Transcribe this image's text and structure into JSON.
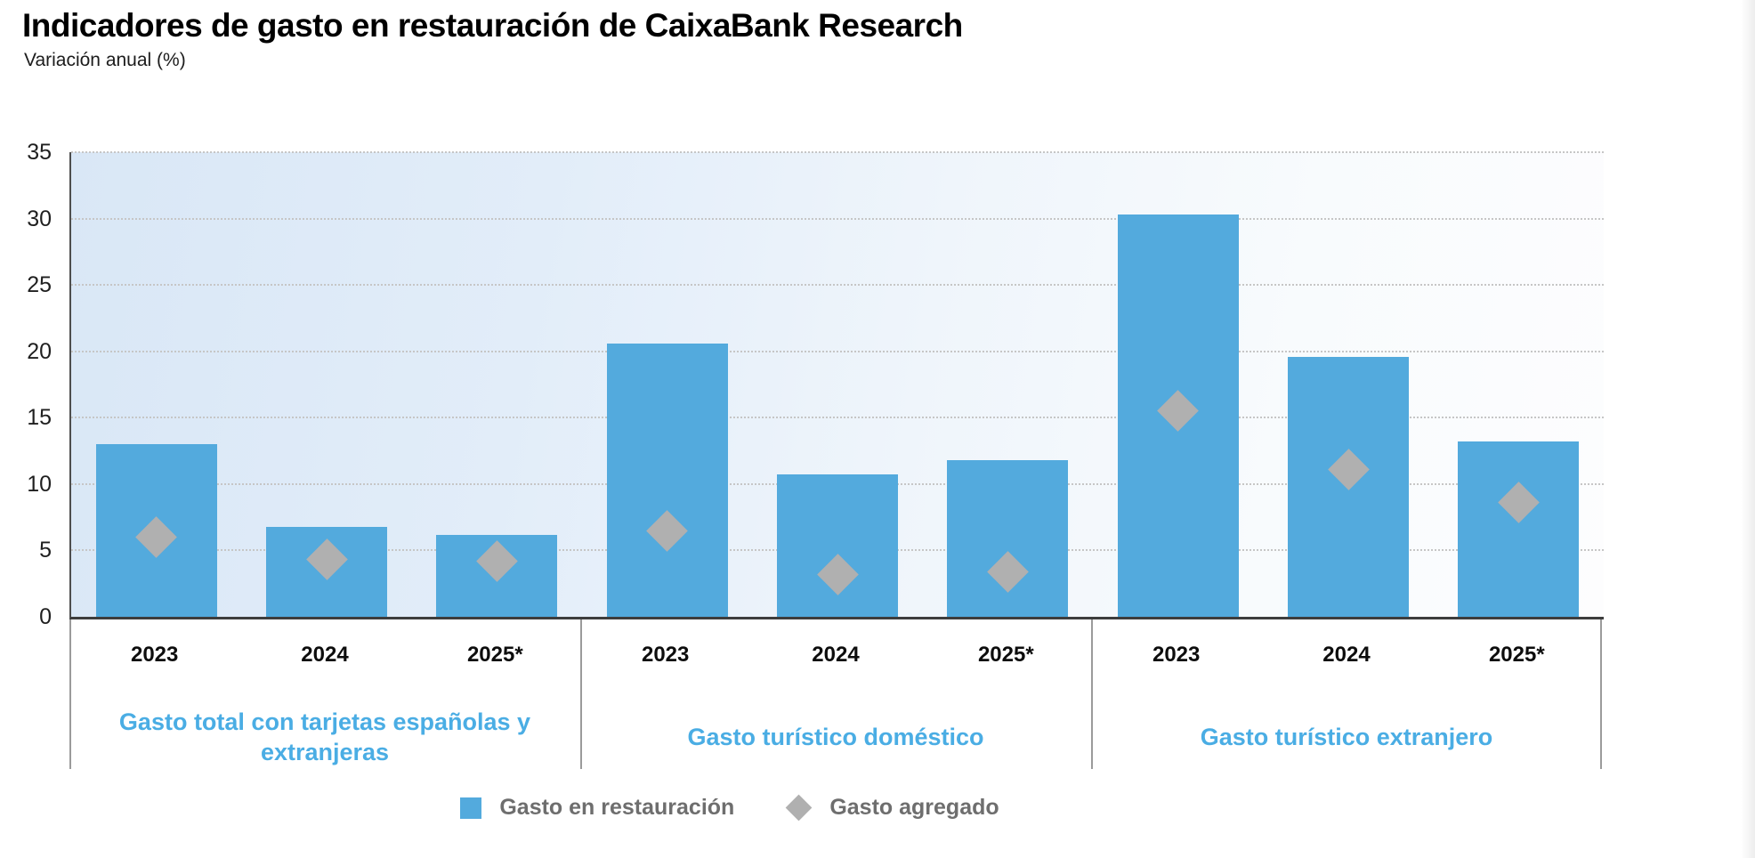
{
  "header": {
    "title": "Indicadores de gasto en restauración de CaixaBank Research",
    "subtitle": "Variación anual (%)"
  },
  "colors": {
    "bar_blue": "#53aadd",
    "diamond_gray": "#b0b0b0",
    "group_label_blue": "#4aade4",
    "legend_text_gray": "#6e6e6e"
  },
  "chart_data": {
    "type": "bar",
    "title": "Indicadores de gasto en restauración de CaixaBank Research",
    "subtitle": "Variación anual (%)",
    "ylabel": "Variación anual (%)",
    "xlabel": "",
    "ylim": [
      0,
      35
    ],
    "yticks": [
      0,
      5,
      10,
      15,
      20,
      25,
      30,
      35
    ],
    "grid": "horizontal-dotted",
    "legend_position": "bottom",
    "categories": [
      "2023",
      "2024",
      "2025*"
    ],
    "groups": [
      {
        "label": "Gasto total con tarjetas españolas y extranjeras",
        "bars": [
          13.0,
          6.8,
          6.2
        ],
        "diamonds": [
          6.0,
          4.3,
          4.2
        ]
      },
      {
        "label": "Gasto turístico doméstico",
        "bars": [
          20.6,
          10.7,
          11.8
        ],
        "diamonds": [
          6.5,
          3.2,
          3.4
        ]
      },
      {
        "label": "Gasto turístico extranjero",
        "bars": [
          30.3,
          19.6,
          13.2
        ],
        "diamonds": [
          15.5,
          11.1,
          8.6
        ]
      }
    ],
    "series": [
      {
        "name": "Gasto en restauración",
        "marker": "square",
        "color": "#53aadd"
      },
      {
        "name": "Gasto agregado",
        "marker": "diamond",
        "color": "#b0b0b0"
      }
    ]
  }
}
